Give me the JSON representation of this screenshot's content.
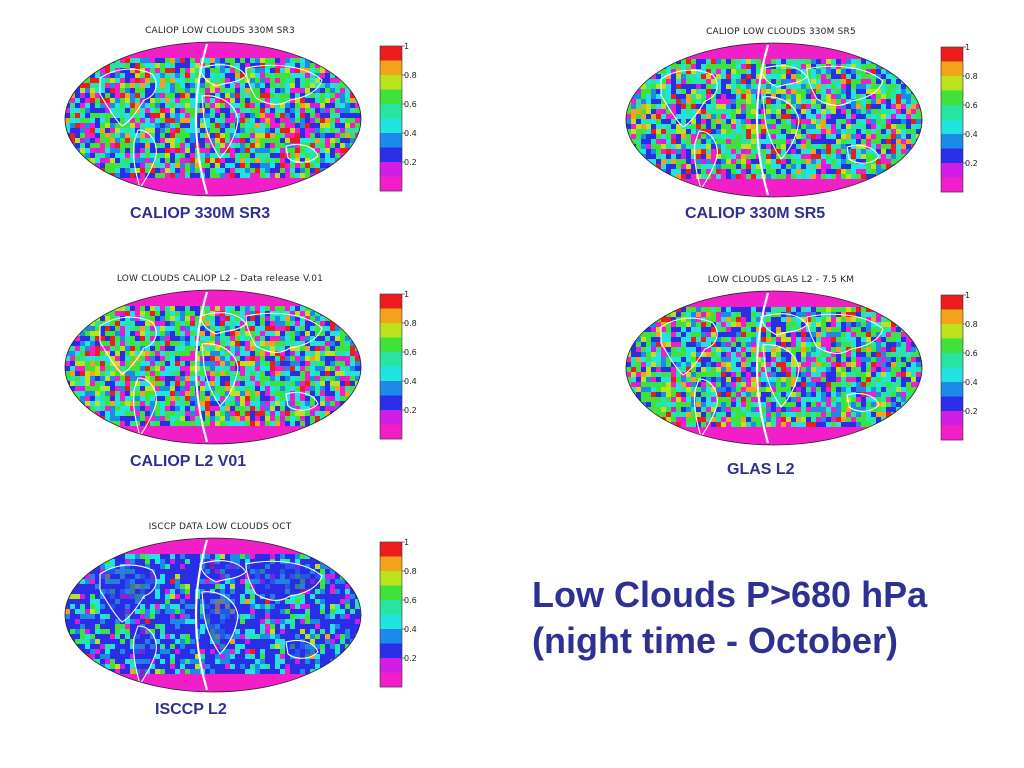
{
  "headline": {
    "line1": "Low Clouds P>680 hPa",
    "line2": "(night time - October)"
  },
  "colors": {
    "caption": "#2e3192",
    "colorbar": [
      "#f21fc9",
      "#d01ee5",
      "#2a2ee6",
      "#1d8ae8",
      "#21e4e0",
      "#27e4a0",
      "#3fe23a",
      "#bbe21c",
      "#f3a21b",
      "#ee1d1d"
    ]
  },
  "colorbar_ticks": [
    "1",
    "0.8",
    "0.6",
    "0.4",
    "0.2"
  ],
  "panels": [
    {
      "map_title": "CALIOP LOW CLOUDS 330M SR3",
      "caption": "CALIOP 330M SR3",
      "palette": "vivid"
    },
    {
      "map_title": "CALIOP LOW CLOUDS 330M SR5",
      "caption": "CALIOP 330M SR5",
      "palette": "vivid"
    },
    {
      "map_title": "LOW CLOUDS CALIOP L2 - Data release V.01",
      "caption": "CALIOP L2 V01",
      "palette": "vivid"
    },
    {
      "map_title": "LOW CLOUDS GLAS L2 - 7.5 KM",
      "caption": "GLAS L2",
      "palette": "vivid"
    },
    {
      "map_title": "ISCCP DATA LOW CLOUDS OCT",
      "caption": "ISCCP L2",
      "palette": "blue"
    }
  ]
}
